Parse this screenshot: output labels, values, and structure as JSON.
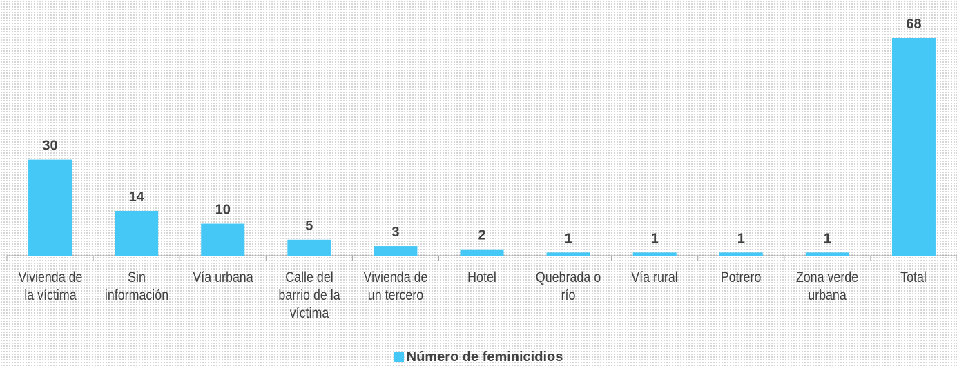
{
  "chart_data": {
    "type": "bar",
    "categories": [
      "Vivienda de la víctima",
      "Sin información",
      "Vía urbana",
      "Calle del barrio de la víctima",
      "Vivienda de un tercero",
      "Hotel",
      "Quebrada o río",
      "Vía rural",
      "Potrero",
      "Zona verde urbana",
      "Total"
    ],
    "series": [
      {
        "name": "Número de feminicidios",
        "color": "#45c8f5",
        "values": [
          30,
          14,
          10,
          5,
          3,
          2,
          1,
          1,
          1,
          1,
          68
        ]
      }
    ],
    "legend": "bottom"
  }
}
